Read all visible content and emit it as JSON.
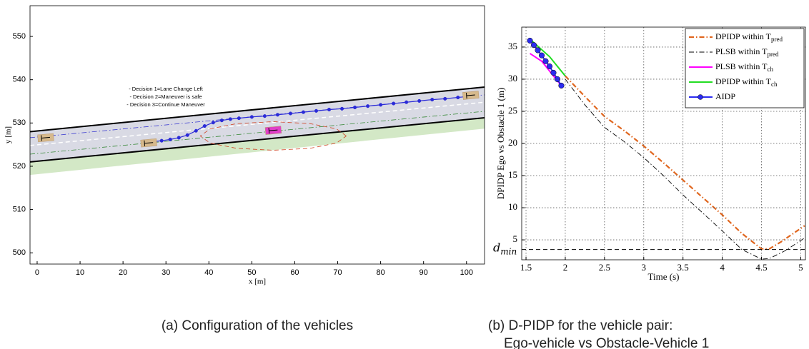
{
  "chart_data": [
    {
      "type": "line",
      "xlabel": "x [m]",
      "ylabel": "y [m]",
      "xlim": [
        -1.66,
        104.2
      ],
      "ylim": [
        497.4,
        557.1
      ],
      "xticks": [
        0,
        10,
        20,
        30,
        40,
        50,
        60,
        70,
        80,
        90,
        100
      ],
      "yticks": [
        500,
        510,
        520,
        530,
        540,
        550
      ],
      "grid": false,
      "annotations": [
        "- Decision 1=Lane Change Left",
        "- Decision 2=Maneuver is safe",
        "- Decision 3=Continue Maneuver"
      ],
      "series": [
        {
          "kind": "band",
          "color": "#d9dae4",
          "x": [
            -1.66,
            104.2
          ],
          "values": [
            528.0,
            538.3
          ],
          "base": [
            521.0,
            531.2
          ]
        },
        {
          "kind": "band",
          "color": "#d3e8c6",
          "x": [
            -1.66,
            104.2
          ],
          "values": [
            521.0,
            531.2
          ],
          "base": [
            518.0,
            528.7
          ]
        },
        {
          "color": "#000000",
          "dash": "solid",
          "width": 2,
          "x": [
            -1.66,
            104.2
          ],
          "values": [
            528.0,
            538.3
          ]
        },
        {
          "color": "#000000",
          "dash": "solid",
          "width": 2,
          "x": [
            -1.66,
            104.2
          ],
          "values": [
            521.0,
            531.2
          ]
        },
        {
          "color": "#ffffff",
          "dash": "dashed",
          "width": 1.5,
          "x": [
            -1.66,
            104.2
          ],
          "values": [
            524.8,
            534.8
          ]
        },
        {
          "color": "#3a3ad0",
          "dash": "dashdot",
          "width": 0.8,
          "x": [
            -1.66,
            104.2
          ],
          "values": [
            526.6,
            536.5
          ]
        },
        {
          "color": "#3a8a3a",
          "dash": "dashdot",
          "width": 0.8,
          "x": [
            -1.66,
            104.2
          ],
          "values": [
            522.8,
            532.7
          ]
        },
        {
          "color": "#d04020",
          "dash": "dashed",
          "width": 0.8,
          "x": [
            72,
            69.7,
            63.5,
            55,
            46.5,
            40.3,
            38,
            40.3,
            46.5,
            55,
            63.5,
            69.7,
            72
          ],
          "values": [
            527,
            528.65,
            529.86,
            530.3,
            529.86,
            528.65,
            527,
            525.35,
            524.14,
            523.7,
            524.14,
            525.35,
            527
          ]
        },
        {
          "color": "#2b2bd8",
          "dash": "solid",
          "width": 1.2,
          "marker": "circle",
          "x": [
            25,
            27,
            29,
            31,
            33,
            35,
            37,
            39,
            41,
            43,
            45,
            47,
            50,
            53,
            56,
            59,
            62,
            65,
            68,
            71,
            74,
            77,
            80,
            83,
            86,
            89,
            92,
            95,
            98,
            100
          ],
          "values": [
            525.5,
            525.7,
            525.9,
            526.2,
            526.6,
            527.2,
            528.2,
            529.3,
            530.1,
            530.6,
            530.9,
            531.1,
            531.4,
            531.6,
            531.9,
            532.2,
            532.5,
            532.8,
            533.1,
            533.3,
            533.6,
            533.9,
            534.2,
            534.5,
            534.8,
            535.1,
            535.4,
            535.6,
            535.9,
            536.1
          ]
        }
      ],
      "vehicles": {
        "x": [
          2,
          26,
          55,
          101
        ],
        "y": [
          526.6,
          525.4,
          528.3,
          536.4
        ],
        "colors": [
          "#d6b98c",
          "#d6b98c",
          "#e040c8",
          "#d6b98c"
        ]
      },
      "caption": [
        "(a) Configuration of the vehicles"
      ]
    },
    {
      "type": "line",
      "xlabel": "Time (s)",
      "ylabel": "DPIDP Ego vs Obstacle 1 (m)",
      "xlim": [
        1.445,
        5.06
      ],
      "ylim": [
        1.9,
        38.1
      ],
      "xticks": [
        1.5,
        2,
        2.5,
        3,
        3.5,
        4,
        4.5,
        5
      ],
      "yticks": [
        5,
        10,
        15,
        20,
        25,
        30,
        35
      ],
      "grid": true,
      "hline": {
        "value": 3.5,
        "label": "d",
        "label_sub": "min"
      },
      "series": [
        {
          "name": "DPIDP within T",
          "name_sub": "pred",
          "color": "#e0661e",
          "dash": "dashdot",
          "width": 2.2,
          "x": [
            2,
            2.25,
            2.5,
            2.75,
            3,
            3.25,
            3.5,
            3.75,
            4,
            4.25,
            4.5,
            4.6,
            4.75,
            5.05
          ],
          "values": [
            30.5,
            27.3,
            24.2,
            22,
            19.6,
            17,
            14.3,
            11.6,
            8.9,
            6,
            3.6,
            3.6,
            4.7,
            7.2
          ]
        },
        {
          "name": "PLSB within T",
          "name_sub": "pred",
          "color": "#000000",
          "dash": "dashdot",
          "width": 0.9,
          "x": [
            2,
            2.25,
            2.5,
            2.75,
            3,
            3.25,
            3.5,
            3.75,
            4,
            4.25,
            4.5,
            4.6,
            4.8,
            5.05
          ],
          "values": [
            30,
            26,
            22.5,
            20.3,
            17.8,
            15,
            12,
            9.2,
            6.4,
            3.5,
            2.0,
            2.1,
            3.3,
            5.3
          ]
        },
        {
          "name": "PLSB within T",
          "name_sub": "ch",
          "color": "#ff00ff",
          "dash": "solid",
          "width": 2,
          "x": [
            1.55,
            1.7,
            1.85,
            1.95
          ],
          "values": [
            34,
            32.8,
            30.5,
            29
          ]
        },
        {
          "name": "DPIDP within T",
          "name_sub": "ch",
          "color": "#22dd22",
          "dash": "solid",
          "width": 2,
          "x": [
            1.57,
            1.8,
            2
          ],
          "values": [
            36,
            33.5,
            30.5
          ]
        },
        {
          "name": "AIDP",
          "color": "#2b2bf0",
          "dash": "solid",
          "width": 2,
          "marker": "circle",
          "x": [
            1.55,
            1.6,
            1.65,
            1.7,
            1.75,
            1.8,
            1.85,
            1.9,
            1.95
          ],
          "values": [
            36,
            35.3,
            34.5,
            33.7,
            32.8,
            32,
            31,
            30,
            29
          ]
        }
      ],
      "caption": [
        "(b) D-PIDP for the vehicle pair:",
        "Ego-vehicle vs Obstacle-Vehicle 1"
      ]
    }
  ]
}
